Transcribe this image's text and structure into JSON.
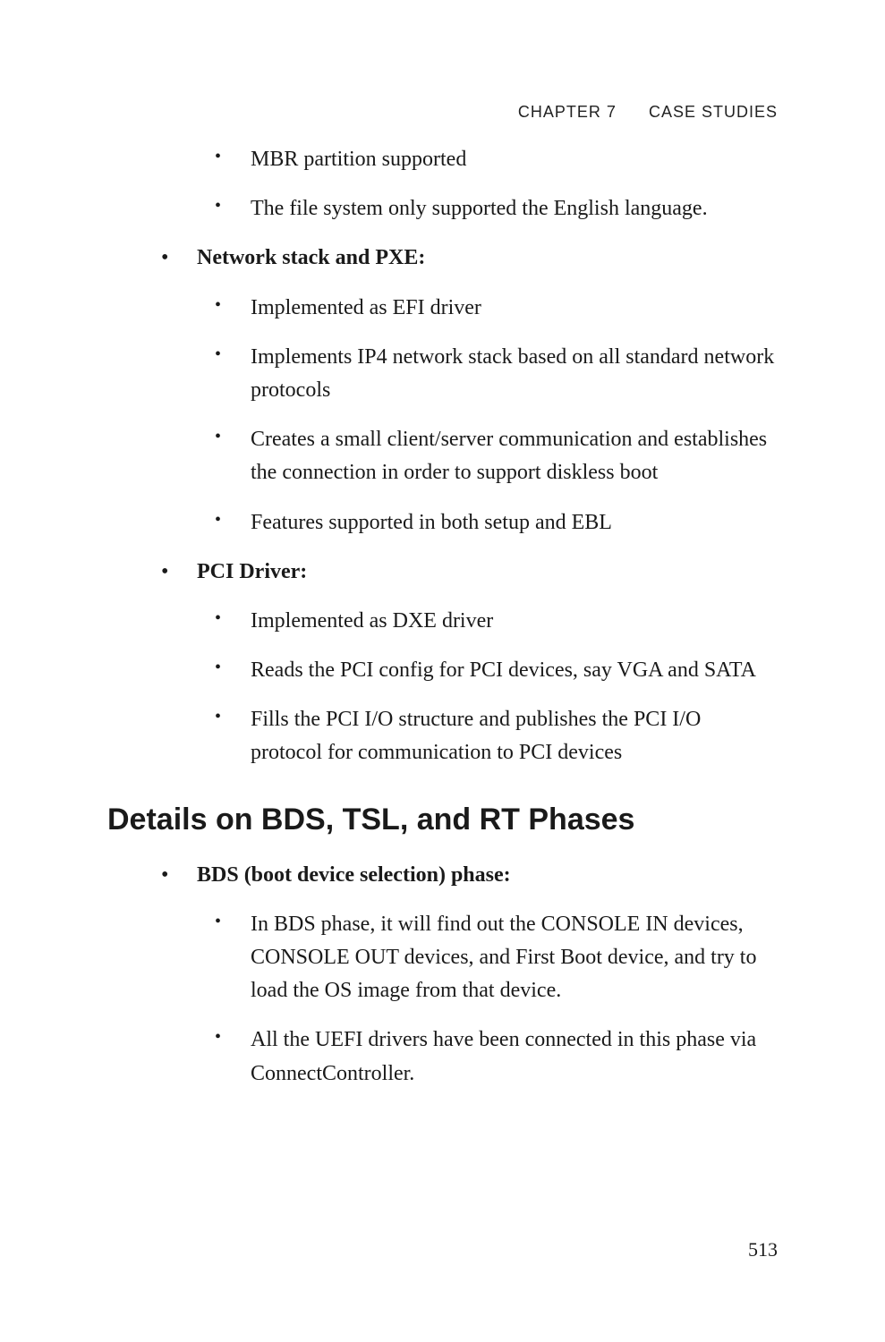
{
  "header": {
    "chapter": "CHAPTER 7",
    "title": "CASE STUDIES"
  },
  "section1": {
    "pre_items": [
      "MBR partition supported",
      "The file system only supported the English language."
    ],
    "groups": [
      {
        "heading": "Network stack and PXE:",
        "items": [
          "Implemented as EFI driver",
          "Implements IP4 network stack based on all standard network protocols",
          "Creates a small client/server communication and establishes the connection in order to support diskless boot",
          "Features supported in both setup and EBL"
        ]
      },
      {
        "heading": "PCI Driver:",
        "items": [
          "Implemented as DXE driver",
          "Reads the PCI config for PCI devices, say VGA and SATA",
          "Fills the PCI I/O structure and publishes the PCI I/O protocol for communication to PCI devices"
        ]
      }
    ]
  },
  "section2": {
    "title": "Details on BDS, TSL, and RT Phases",
    "groups": [
      {
        "heading": "BDS (boot device selection) phase:",
        "items": [
          "In BDS phase, it will find out the CONSOLE IN devices, CONSOLE OUT devices, and First Boot device, and try to load the OS image from that device.",
          "All the UEFI drivers have been connected in this phase via ConnectController."
        ]
      }
    ]
  },
  "page_number": "513"
}
